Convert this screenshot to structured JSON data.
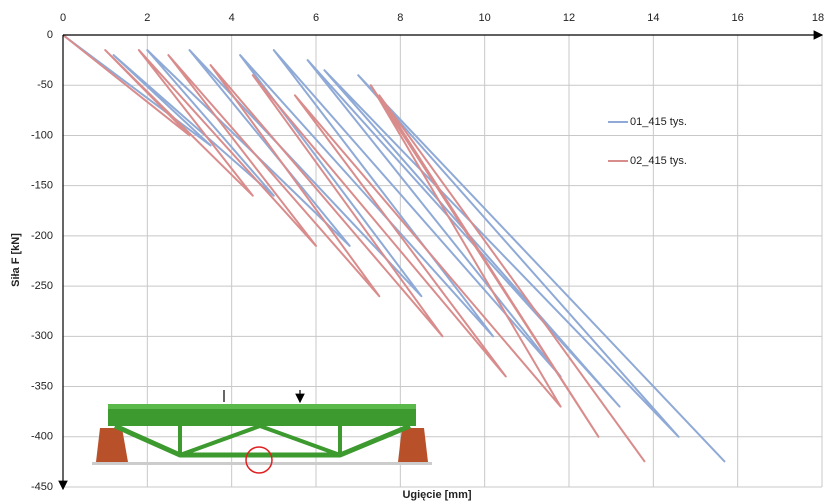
{
  "chart_data": {
    "type": "line",
    "x_label": "Ugięcie [mm]",
    "y_label": "Siła F [kN]",
    "xlim": [
      0,
      18
    ],
    "xticks": [
      0,
      2,
      4,
      6,
      8,
      10,
      12,
      14,
      16,
      18
    ],
    "ylim": [
      -450,
      0
    ],
    "yticks": [
      0,
      -50,
      -100,
      -150,
      -200,
      -250,
      -300,
      -350,
      -400,
      -450
    ],
    "grid": true,
    "legend": "right",
    "series": [
      {
        "name": "01_415 tys.",
        "color": "#8faad6",
        "x": [
          0,
          3.5,
          1.2,
          5.0,
          2.0,
          6.8,
          3.0,
          8.5,
          4.2,
          10.2,
          5.0,
          11.8,
          5.8,
          13.2,
          6.2,
          14.6,
          7.0,
          15.7
        ],
        "values": [
          0,
          -110,
          -20,
          -160,
          -15,
          -210,
          -15,
          -260,
          -20,
          -300,
          -15,
          -340,
          -25,
          -370,
          -35,
          -400,
          -40,
          -425
        ]
      },
      {
        "name": "02_415 tys.",
        "color": "#d98c8c",
        "x": [
          0,
          3.0,
          1.0,
          4.5,
          1.8,
          6.0,
          2.5,
          7.5,
          3.5,
          9.0,
          4.5,
          10.5,
          5.5,
          11.8,
          7.3,
          12.7,
          7.5,
          13.8
        ],
        "values": [
          0,
          -100,
          -15,
          -160,
          -15,
          -210,
          -20,
          -260,
          -30,
          -300,
          -40,
          -340,
          -60,
          -370,
          -50,
          -400,
          -60,
          -425
        ]
      }
    ]
  }
}
